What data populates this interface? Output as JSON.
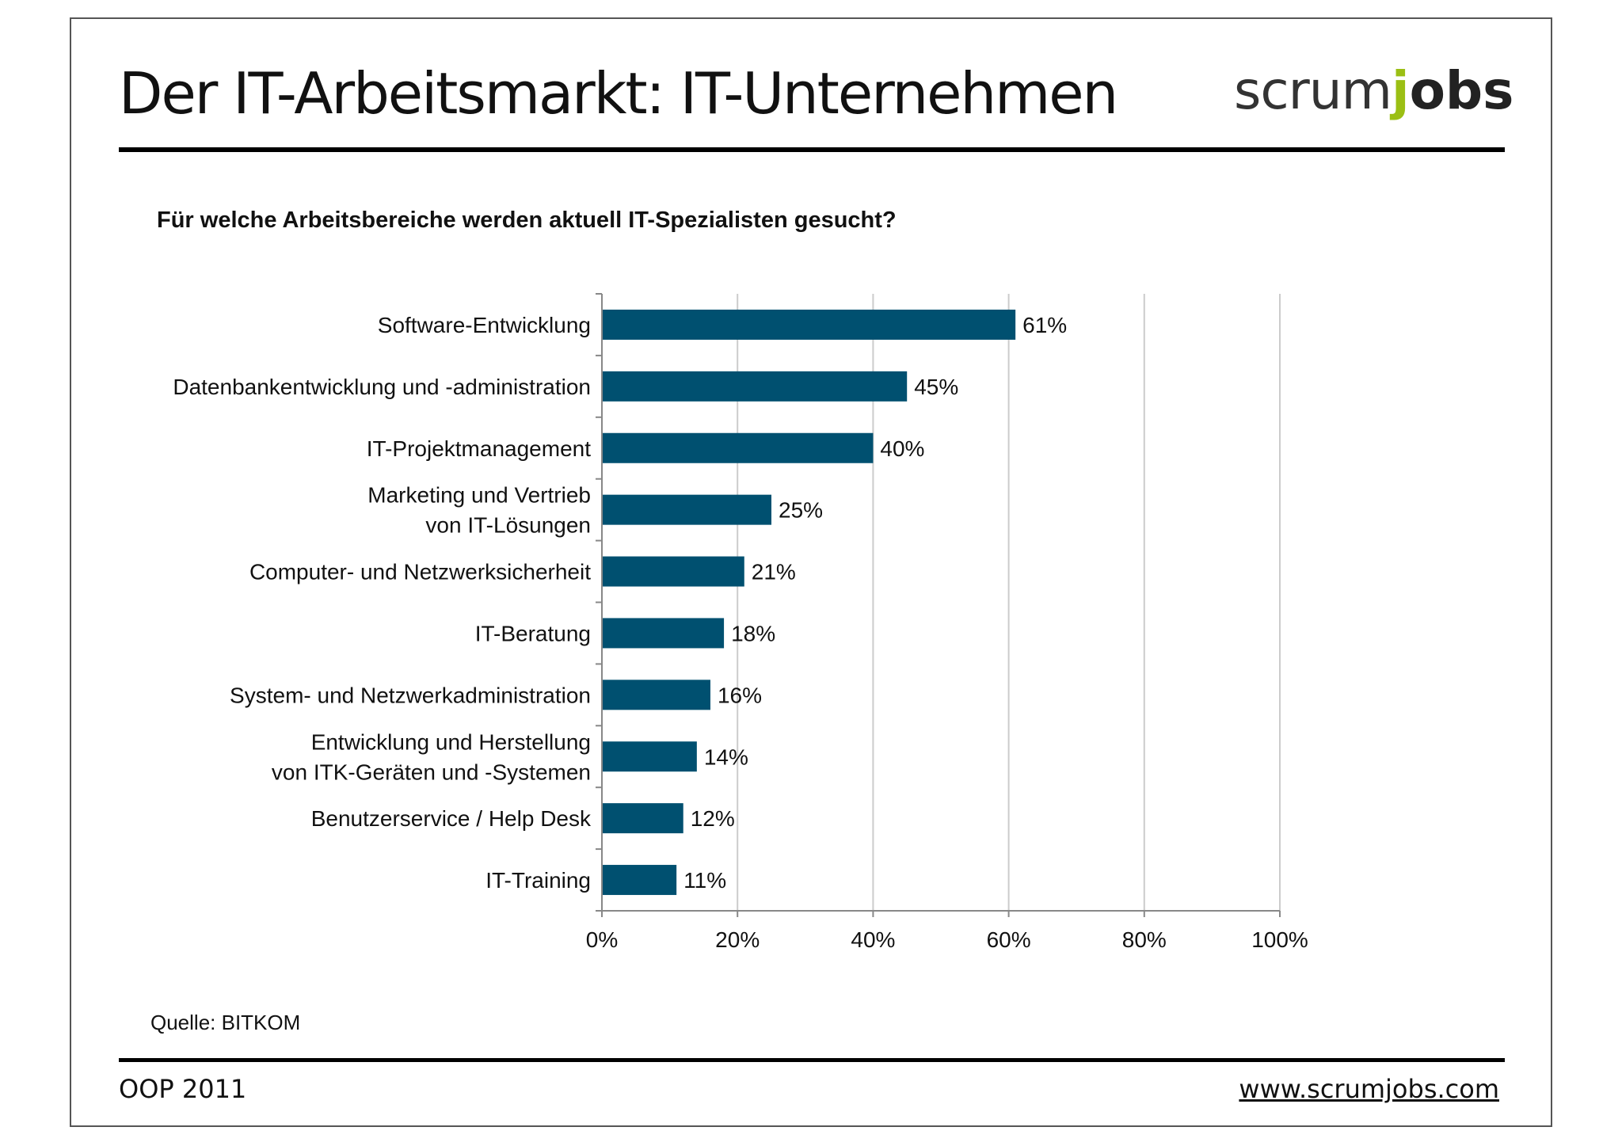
{
  "slide": {
    "title": "Der IT-Arbeitsmarkt: IT-Unternehmen",
    "logo": {
      "part1": "scrum",
      "part2": "j",
      "part3": "obs"
    },
    "source": "Quelle: BITKOM",
    "footer_left": "OOP 2011",
    "footer_right": "www.scrumjobs.com"
  },
  "colors": {
    "bar": "#005070",
    "grid": "#cccccc",
    "logo_accent": "#9bbf14"
  },
  "chart_data": {
    "type": "bar",
    "orientation": "horizontal",
    "title": "Für welche Arbeitsbereiche werden aktuell IT-Spezialisten gesucht?",
    "categories": [
      [
        "Software-Entwicklung"
      ],
      [
        "Datenbankentwicklung und -administration"
      ],
      [
        "IT-Projektmanagement"
      ],
      [
        "Marketing und Vertrieb",
        "von IT-Lösungen"
      ],
      [
        "Computer- und Netzwerksicherheit"
      ],
      [
        "IT-Beratung"
      ],
      [
        "System- und Netzwerkadministration"
      ],
      [
        "Entwicklung und Herstellung",
        "von ITK-Geräten und -Systemen"
      ],
      [
        "Benutzerservice / Help Desk"
      ],
      [
        "IT-Training"
      ]
    ],
    "values": [
      61,
      45,
      40,
      25,
      21,
      18,
      16,
      14,
      12,
      11
    ],
    "value_labels": [
      "61%",
      "45%",
      "40%",
      "25%",
      "21%",
      "18%",
      "16%",
      "14%",
      "12%",
      "11%"
    ],
    "xlim": [
      0,
      100
    ],
    "xticks": [
      0,
      20,
      40,
      60,
      80,
      100
    ],
    "xtick_labels": [
      "0%",
      "20%",
      "40%",
      "60%",
      "80%",
      "100%"
    ],
    "grid": true,
    "legend": "none"
  }
}
